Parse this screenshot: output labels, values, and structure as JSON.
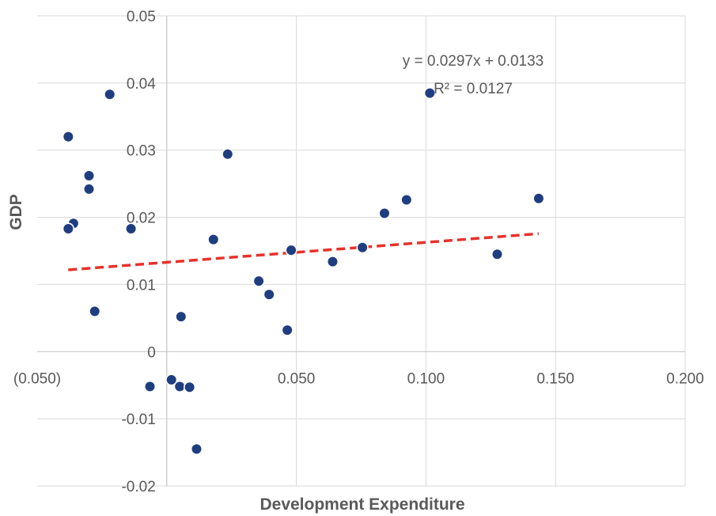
{
  "chart_data": {
    "type": "scatter",
    "title": "",
    "xlabel": "Development Expenditure",
    "ylabel": "GDP",
    "xlim": [
      -0.05,
      0.2
    ],
    "ylim": [
      -0.02,
      0.05
    ],
    "x_ticks": [
      {
        "value": -0.05,
        "label": "(0.050)"
      },
      {
        "value": 0.05,
        "label": "0.050"
      },
      {
        "value": 0.1,
        "label": "0.100"
      },
      {
        "value": 0.15,
        "label": "0.150"
      },
      {
        "value": 0.2,
        "label": "0.200"
      }
    ],
    "x_grid": [
      0,
      0.05,
      0.1,
      0.15,
      0.2
    ],
    "y_ticks": [
      {
        "value": 0.05,
        "label": "0.05"
      },
      {
        "value": 0.04,
        "label": "0.04"
      },
      {
        "value": 0.03,
        "label": "0.03"
      },
      {
        "value": 0.02,
        "label": "0.02"
      },
      {
        "value": 0.01,
        "label": "0.01"
      },
      {
        "value": 0,
        "label": "0"
      },
      {
        "value": -0.01,
        "label": "-0.01"
      },
      {
        "value": -0.02,
        "label": "-0.02"
      }
    ],
    "grid": true,
    "points": [
      {
        "x": -0.038,
        "y": 0.032
      },
      {
        "x": -0.022,
        "y": 0.0383
      },
      {
        "x": -0.03,
        "y": 0.0262
      },
      {
        "x": -0.03,
        "y": 0.0242
      },
      {
        "x": -0.036,
        "y": 0.0191
      },
      {
        "x": -0.038,
        "y": 0.0183
      },
      {
        "x": -0.0138,
        "y": 0.0183
      },
      {
        "x": -0.0278,
        "y": 0.006
      },
      {
        "x": 0.018,
        "y": 0.0167
      },
      {
        "x": 0.0235,
        "y": 0.0294
      },
      {
        "x": 0.0355,
        "y": 0.0105
      },
      {
        "x": 0.0395,
        "y": 0.0085
      },
      {
        "x": 0.048,
        "y": 0.0151
      },
      {
        "x": 0.0465,
        "y": 0.0032
      },
      {
        "x": 0.0055,
        "y": 0.0052
      },
      {
        "x": -0.0065,
        "y": -0.0052
      },
      {
        "x": 0.0018,
        "y": -0.0042
      },
      {
        "x": 0.005,
        "y": -0.0052
      },
      {
        "x": 0.0088,
        "y": -0.0053
      },
      {
        "x": 0.0115,
        "y": -0.0145
      },
      {
        "x": 0.064,
        "y": 0.0134
      },
      {
        "x": 0.0755,
        "y": 0.0155
      },
      {
        "x": 0.084,
        "y": 0.0206
      },
      {
        "x": 0.0925,
        "y": 0.0226
      },
      {
        "x": 0.1015,
        "y": 0.0385
      },
      {
        "x": 0.1275,
        "y": 0.0145
      },
      {
        "x": 0.1435,
        "y": 0.0228
      }
    ],
    "trendline": {
      "slope": 0.0297,
      "intercept": 0.0133,
      "x_range": [
        -0.038,
        0.1435
      ],
      "style": "dashed",
      "equation": "y = 0.0297x + 0.0133",
      "r_squared": "R² = 0.0127"
    },
    "colors": {
      "point": "#1f3e80",
      "trend": "#e8312a"
    }
  }
}
